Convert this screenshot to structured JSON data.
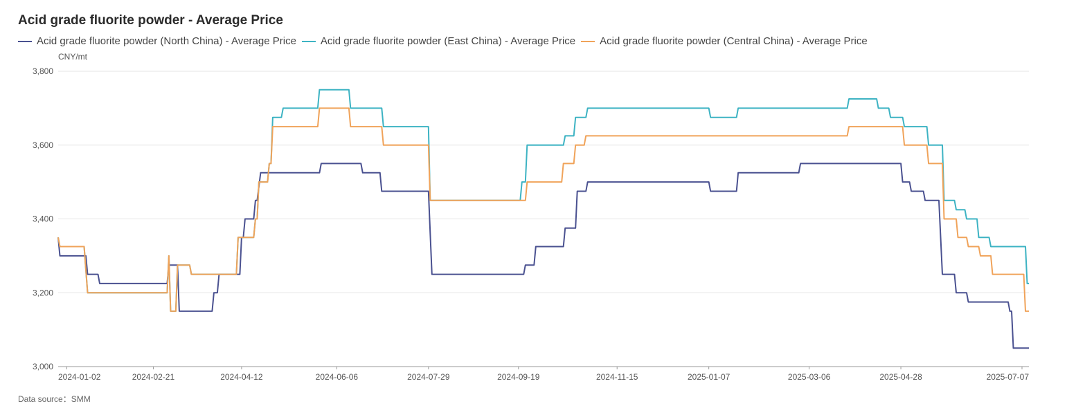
{
  "chart_data": {
    "type": "line",
    "title": "Acid grade fluorite powder - Average Price",
    "ylabel": "CNY/mt",
    "ylim": [
      3000,
      3800
    ],
    "yticks": [
      3000,
      3200,
      3400,
      3600,
      3800
    ],
    "ytick_labels": [
      "3,000",
      "3,200",
      "3,400",
      "3,600",
      "3,800"
    ],
    "xlim": [
      "2023-12-28",
      "2025-07-11"
    ],
    "xticks": [
      "2024-01-02",
      "2024-02-21",
      "2024-04-12",
      "2024-06-06",
      "2024-07-29",
      "2024-09-19",
      "2024-11-15",
      "2025-01-07",
      "2025-03-06",
      "2025-04-28",
      "2025-07-07"
    ],
    "grid": true,
    "legend_position": "top-left",
    "source": "Data source：SMM",
    "series": [
      {
        "name": "Acid grade fluorite powder (North China) - Average Price",
        "color": "#4a5190",
        "points": [
          [
            "2023-12-28",
            3350
          ],
          [
            "2023-12-29",
            3300
          ],
          [
            "2024-01-13",
            3300
          ],
          [
            "2024-01-14",
            3250
          ],
          [
            "2024-01-20",
            3250
          ],
          [
            "2024-01-21",
            3225
          ],
          [
            "2024-02-29",
            3225
          ],
          [
            "2024-03-01",
            3275
          ],
          [
            "2024-03-06",
            3275
          ],
          [
            "2024-03-07",
            3150
          ],
          [
            "2024-03-26",
            3150
          ],
          [
            "2024-03-27",
            3200
          ],
          [
            "2024-03-29",
            3200
          ],
          [
            "2024-03-30",
            3250
          ],
          [
            "2024-04-11",
            3250
          ],
          [
            "2024-04-12",
            3350
          ],
          [
            "2024-04-13",
            3350
          ],
          [
            "2024-04-14",
            3400
          ],
          [
            "2024-04-19",
            3400
          ],
          [
            "2024-04-20",
            3450
          ],
          [
            "2024-04-21",
            3450
          ],
          [
            "2024-04-23",
            3525
          ],
          [
            "2024-05-27",
            3525
          ],
          [
            "2024-05-28",
            3550
          ],
          [
            "2024-06-20",
            3550
          ],
          [
            "2024-06-21",
            3525
          ],
          [
            "2024-07-01",
            3525
          ],
          [
            "2024-07-02",
            3475
          ],
          [
            "2024-07-29",
            3475
          ],
          [
            "2024-07-31",
            3250
          ],
          [
            "2024-09-22",
            3250
          ],
          [
            "2024-09-23",
            3275
          ],
          [
            "2024-09-28",
            3275
          ],
          [
            "2024-09-29",
            3325
          ],
          [
            "2024-10-15",
            3325
          ],
          [
            "2024-10-16",
            3375
          ],
          [
            "2024-10-22",
            3375
          ],
          [
            "2024-10-23",
            3475
          ],
          [
            "2024-10-28",
            3475
          ],
          [
            "2024-10-29",
            3500
          ],
          [
            "2025-01-07",
            3500
          ],
          [
            "2025-01-08",
            3475
          ],
          [
            "2025-01-23",
            3475
          ],
          [
            "2025-01-24",
            3525
          ],
          [
            "2025-02-28",
            3525
          ],
          [
            "2025-03-01",
            3550
          ],
          [
            "2025-04-28",
            3550
          ],
          [
            "2025-04-29",
            3500
          ],
          [
            "2025-05-03",
            3500
          ],
          [
            "2025-05-04",
            3475
          ],
          [
            "2025-05-11",
            3475
          ],
          [
            "2025-05-12",
            3450
          ],
          [
            "2025-05-20",
            3450
          ],
          [
            "2025-05-22",
            3250
          ],
          [
            "2025-05-29",
            3250
          ],
          [
            "2025-05-30",
            3200
          ],
          [
            "2025-06-05",
            3200
          ],
          [
            "2025-06-06",
            3175
          ],
          [
            "2025-06-29",
            3175
          ],
          [
            "2025-06-30",
            3150
          ],
          [
            "2025-07-01",
            3150
          ],
          [
            "2025-07-02",
            3050
          ],
          [
            "2025-07-11",
            3050
          ]
        ]
      },
      {
        "name": "Acid grade fluorite powder (East China) - Average Price",
        "color": "#3db3c3",
        "points": [
          [
            "2023-12-28",
            3350
          ],
          [
            "2023-12-29",
            3325
          ],
          [
            "2024-01-12",
            3325
          ],
          [
            "2024-01-14",
            3200
          ],
          [
            "2024-02-29",
            3200
          ],
          [
            "2024-03-01",
            3300
          ],
          [
            "2024-03-02",
            3150
          ],
          [
            "2024-03-05",
            3150
          ],
          [
            "2024-03-06",
            3275
          ],
          [
            "2024-03-13",
            3275
          ],
          [
            "2024-03-14",
            3250
          ],
          [
            "2024-04-09",
            3250
          ],
          [
            "2024-04-10",
            3350
          ],
          [
            "2024-04-19",
            3350
          ],
          [
            "2024-04-20",
            3400
          ],
          [
            "2024-04-21",
            3400
          ],
          [
            "2024-04-22",
            3500
          ],
          [
            "2024-04-27",
            3500
          ],
          [
            "2024-04-28",
            3550
          ],
          [
            "2024-04-29",
            3550
          ],
          [
            "2024-04-30",
            3675
          ],
          [
            "2024-05-05",
            3675
          ],
          [
            "2024-05-06",
            3700
          ],
          [
            "2024-05-26",
            3700
          ],
          [
            "2024-05-27",
            3750
          ],
          [
            "2024-06-13",
            3750
          ],
          [
            "2024-06-14",
            3700
          ],
          [
            "2024-07-02",
            3700
          ],
          [
            "2024-07-03",
            3650
          ],
          [
            "2024-07-29",
            3650
          ],
          [
            "2024-07-30",
            3450
          ],
          [
            "2024-09-20",
            3450
          ],
          [
            "2024-09-21",
            3500
          ],
          [
            "2024-09-23",
            3500
          ],
          [
            "2024-09-24",
            3600
          ],
          [
            "2024-10-15",
            3600
          ],
          [
            "2024-10-16",
            3625
          ],
          [
            "2024-10-21",
            3625
          ],
          [
            "2024-10-22",
            3675
          ],
          [
            "2024-10-28",
            3675
          ],
          [
            "2024-10-29",
            3700
          ],
          [
            "2025-01-07",
            3700
          ],
          [
            "2025-01-08",
            3675
          ],
          [
            "2025-01-23",
            3675
          ],
          [
            "2025-01-24",
            3700
          ],
          [
            "2025-03-28",
            3700
          ],
          [
            "2025-03-29",
            3725
          ],
          [
            "2025-04-14",
            3725
          ],
          [
            "2025-04-15",
            3700
          ],
          [
            "2025-04-21",
            3700
          ],
          [
            "2025-04-22",
            3675
          ],
          [
            "2025-04-29",
            3675
          ],
          [
            "2025-04-30",
            3650
          ],
          [
            "2025-05-13",
            3650
          ],
          [
            "2025-05-14",
            3600
          ],
          [
            "2025-05-22",
            3600
          ],
          [
            "2025-05-23",
            3450
          ],
          [
            "2025-05-29",
            3450
          ],
          [
            "2025-05-30",
            3425
          ],
          [
            "2025-06-04",
            3425
          ],
          [
            "2025-06-05",
            3400
          ],
          [
            "2025-06-11",
            3400
          ],
          [
            "2025-06-12",
            3350
          ],
          [
            "2025-06-18",
            3350
          ],
          [
            "2025-06-19",
            3325
          ],
          [
            "2025-07-09",
            3325
          ],
          [
            "2025-07-10",
            3225
          ],
          [
            "2025-07-11",
            3225
          ]
        ]
      },
      {
        "name": "Acid grade fluorite powder (Central China) - Average Price",
        "color": "#f0a35a",
        "points": [
          [
            "2023-12-28",
            3350
          ],
          [
            "2023-12-29",
            3325
          ],
          [
            "2024-01-12",
            3325
          ],
          [
            "2024-01-14",
            3200
          ],
          [
            "2024-02-29",
            3200
          ],
          [
            "2024-03-01",
            3300
          ],
          [
            "2024-03-02",
            3150
          ],
          [
            "2024-03-05",
            3150
          ],
          [
            "2024-03-06",
            3275
          ],
          [
            "2024-03-13",
            3275
          ],
          [
            "2024-03-14",
            3250
          ],
          [
            "2024-04-09",
            3250
          ],
          [
            "2024-04-10",
            3350
          ],
          [
            "2024-04-19",
            3350
          ],
          [
            "2024-04-20",
            3400
          ],
          [
            "2024-04-21",
            3400
          ],
          [
            "2024-04-22",
            3500
          ],
          [
            "2024-04-27",
            3500
          ],
          [
            "2024-04-28",
            3550
          ],
          [
            "2024-04-29",
            3550
          ],
          [
            "2024-04-30",
            3650
          ],
          [
            "2024-05-26",
            3650
          ],
          [
            "2024-05-27",
            3700
          ],
          [
            "2024-06-13",
            3700
          ],
          [
            "2024-06-14",
            3650
          ],
          [
            "2024-07-02",
            3650
          ],
          [
            "2024-07-03",
            3600
          ],
          [
            "2024-07-29",
            3600
          ],
          [
            "2024-07-30",
            3450
          ],
          [
            "2024-09-23",
            3450
          ],
          [
            "2024-09-24",
            3500
          ],
          [
            "2024-10-14",
            3500
          ],
          [
            "2024-10-15",
            3550
          ],
          [
            "2024-10-21",
            3550
          ],
          [
            "2024-10-22",
            3600
          ],
          [
            "2024-10-27",
            3600
          ],
          [
            "2024-10-28",
            3625
          ],
          [
            "2025-03-28",
            3625
          ],
          [
            "2025-03-29",
            3650
          ],
          [
            "2025-04-29",
            3650
          ],
          [
            "2025-04-30",
            3600
          ],
          [
            "2025-05-13",
            3600
          ],
          [
            "2025-05-14",
            3550
          ],
          [
            "2025-05-22",
            3550
          ],
          [
            "2025-05-23",
            3400
          ],
          [
            "2025-05-30",
            3400
          ],
          [
            "2025-05-31",
            3350
          ],
          [
            "2025-06-05",
            3350
          ],
          [
            "2025-06-06",
            3325
          ],
          [
            "2025-06-12",
            3325
          ],
          [
            "2025-06-13",
            3300
          ],
          [
            "2025-06-19",
            3300
          ],
          [
            "2025-06-20",
            3250
          ],
          [
            "2025-07-08",
            3250
          ],
          [
            "2025-07-09",
            3150
          ],
          [
            "2025-07-11",
            3150
          ]
        ]
      }
    ]
  }
}
